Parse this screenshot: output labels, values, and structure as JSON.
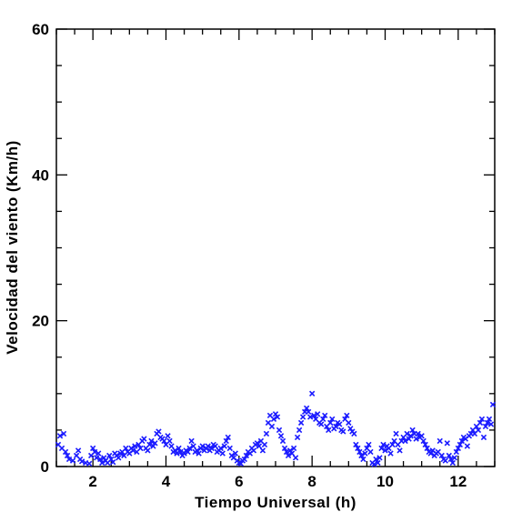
{
  "chart_data": {
    "type": "scatter",
    "title": "",
    "xlabel": "Tiempo Universal (h)",
    "ylabel": "Velocidad del viento (Km/h)",
    "xlim": [
      1,
      13
    ],
    "ylim": [
      0,
      60
    ],
    "x_ticks": [
      2,
      4,
      6,
      8,
      10,
      12
    ],
    "x_tick_labels": [
      "2",
      "4",
      "6",
      "8",
      "10",
      "12"
    ],
    "y_ticks": [
      0,
      20,
      40,
      60
    ],
    "y_tick_labels": [
      "0",
      "20",
      "40",
      "60"
    ],
    "marker": "x",
    "marker_color": "#1a1aff",
    "grid": false,
    "series": [
      {
        "x": [
          1.05,
          1.1,
          1.15,
          1.2,
          1.25,
          1.3,
          1.35,
          1.45,
          1.55,
          1.6,
          1.65,
          1.7,
          1.8,
          1.9,
          1.95,
          2.0,
          2.05,
          2.1,
          2.15,
          2.2,
          2.25,
          2.3,
          2.35,
          2.4,
          2.45,
          2.5,
          2.55,
          2.6,
          2.65,
          2.7,
          2.75,
          2.8,
          2.85,
          2.9,
          2.95,
          3.0,
          3.05,
          3.1,
          3.15,
          3.2,
          3.25,
          3.3,
          3.35,
          3.4,
          3.45,
          3.5,
          3.55,
          3.6,
          3.65,
          3.7,
          3.75,
          3.8,
          3.85,
          3.9,
          3.95,
          4.0,
          4.05,
          4.1,
          4.15,
          4.2,
          4.25,
          4.3,
          4.35,
          4.4,
          4.45,
          4.5,
          4.55,
          4.6,
          4.65,
          4.7,
          4.75,
          4.8,
          4.85,
          4.9,
          4.95,
          5.0,
          5.05,
          5.1,
          5.15,
          5.2,
          5.25,
          5.3,
          5.35,
          5.4,
          5.45,
          5.5,
          5.55,
          5.6,
          5.65,
          5.7,
          5.75,
          5.8,
          5.85,
          5.9,
          5.95,
          6.0,
          6.05,
          6.1,
          6.15,
          6.2,
          6.25,
          6.3,
          6.35,
          6.4,
          6.45,
          6.5,
          6.55,
          6.6,
          6.65,
          6.7,
          6.75,
          6.8,
          6.85,
          6.9,
          6.95,
          7.0,
          7.05,
          7.1,
          7.15,
          7.2,
          7.25,
          7.3,
          7.35,
          7.4,
          7.45,
          7.5,
          7.55,
          7.6,
          7.65,
          7.7,
          7.75,
          7.8,
          7.85,
          7.9,
          7.95,
          8.0,
          8.05,
          8.1,
          8.15,
          8.2,
          8.25,
          8.3,
          8.35,
          8.4,
          8.45,
          8.5,
          8.55,
          8.6,
          8.65,
          8.7,
          8.75,
          8.8,
          8.85,
          8.9,
          8.95,
          9.0,
          9.05,
          9.1,
          9.15,
          9.2,
          9.25,
          9.3,
          9.35,
          9.4,
          9.45,
          9.5,
          9.55,
          9.6,
          9.65,
          9.7,
          9.75,
          9.8,
          9.85,
          9.9,
          9.95,
          10.0,
          10.05,
          10.1,
          10.15,
          10.2,
          10.25,
          10.3,
          10.35,
          10.4,
          10.45,
          10.5,
          10.55,
          10.6,
          10.65,
          10.7,
          10.75,
          10.8,
          10.85,
          10.9,
          10.95,
          11.0,
          11.05,
          11.1,
          11.15,
          11.2,
          11.25,
          11.3,
          11.35,
          11.4,
          11.45,
          11.5,
          11.55,
          11.6,
          11.65,
          11.7,
          11.75,
          11.8,
          11.85,
          11.9,
          11.95,
          12.0,
          12.05,
          12.1,
          12.15,
          12.2,
          12.25,
          12.3,
          12.35,
          12.4,
          12.45,
          12.5,
          12.55,
          12.6,
          12.65,
          12.7,
          12.75,
          12.8,
          12.85,
          12.9,
          12.95
        ],
        "y": [
          3.0,
          4.2,
          2.5,
          4.5,
          2.0,
          1.5,
          1.0,
          0.8,
          1.5,
          2.2,
          1.0,
          0.7,
          0.5,
          0.4,
          1.5,
          2.5,
          2.0,
          1.2,
          1.8,
          1.0,
          0.5,
          1.2,
          0.8,
          0.5,
          1.5,
          1.0,
          0.6,
          1.8,
          1.5,
          1.2,
          1.8,
          2.0,
          1.5,
          2.5,
          2.0,
          1.8,
          2.5,
          2.2,
          2.8,
          2.0,
          3.0,
          2.5,
          3.5,
          3.8,
          2.5,
          2.2,
          3.0,
          3.5,
          2.8,
          3.2,
          4.5,
          4.8,
          4.0,
          3.8,
          3.5,
          3.0,
          4.2,
          3.5,
          2.8,
          2.0,
          2.2,
          1.8,
          2.5,
          2.0,
          1.5,
          1.8,
          2.2,
          2.0,
          2.5,
          3.5,
          2.8,
          2.0,
          2.2,
          1.8,
          2.5,
          2.8,
          2.2,
          2.5,
          2.8,
          2.2,
          2.5,
          3.0,
          2.8,
          2.0,
          2.2,
          2.5,
          1.8,
          2.8,
          3.5,
          4.0,
          2.5,
          1.5,
          1.2,
          1.8,
          0.8,
          0.5,
          0.4,
          0.8,
          1.0,
          1.5,
          2.0,
          1.8,
          2.5,
          2.2,
          3.0,
          3.2,
          2.8,
          3.5,
          2.2,
          3.0,
          4.5,
          6.0,
          7.0,
          5.5,
          6.5,
          7.2,
          6.8,
          5.0,
          4.2,
          3.5,
          2.5,
          2.0,
          1.5,
          2.2,
          1.8,
          2.5,
          1.2,
          4.0,
          5.0,
          6.0,
          6.8,
          7.5,
          8.0,
          7.5,
          6.8,
          10.0,
          7.0,
          6.5,
          7.2,
          6.0,
          5.8,
          6.5,
          7.0,
          5.5,
          5.0,
          6.0,
          6.5,
          5.2,
          5.5,
          6.0,
          5.8,
          5.0,
          4.8,
          6.5,
          7.0,
          6.0,
          5.2,
          4.8,
          4.5,
          3.0,
          2.5,
          2.0,
          1.5,
          1.0,
          1.8,
          2.5,
          3.0,
          2.0,
          0.5,
          0.3,
          1.0,
          0.5,
          1.2,
          2.5,
          3.0,
          2.2,
          2.8,
          2.5,
          1.8,
          3.0,
          3.5,
          4.5,
          3.0,
          2.2,
          3.5,
          4.0,
          3.5,
          4.5,
          3.8,
          4.2,
          5.0,
          4.5,
          3.8,
          4.5,
          4.0,
          4.2,
          3.5,
          3.0,
          2.5,
          2.0,
          1.8,
          2.2,
          1.5,
          1.8,
          2.0,
          3.5,
          1.5,
          1.0,
          0.8,
          3.2,
          1.5,
          1.0,
          0.5,
          1.2,
          2.0,
          2.5,
          3.0,
          3.5,
          4.0,
          3.8,
          2.8,
          4.2,
          4.5,
          5.0,
          4.5,
          5.5,
          5.0,
          6.0,
          6.5,
          4.0,
          5.5,
          6.0,
          6.5,
          5.8,
          8.5
        ]
      }
    ]
  }
}
